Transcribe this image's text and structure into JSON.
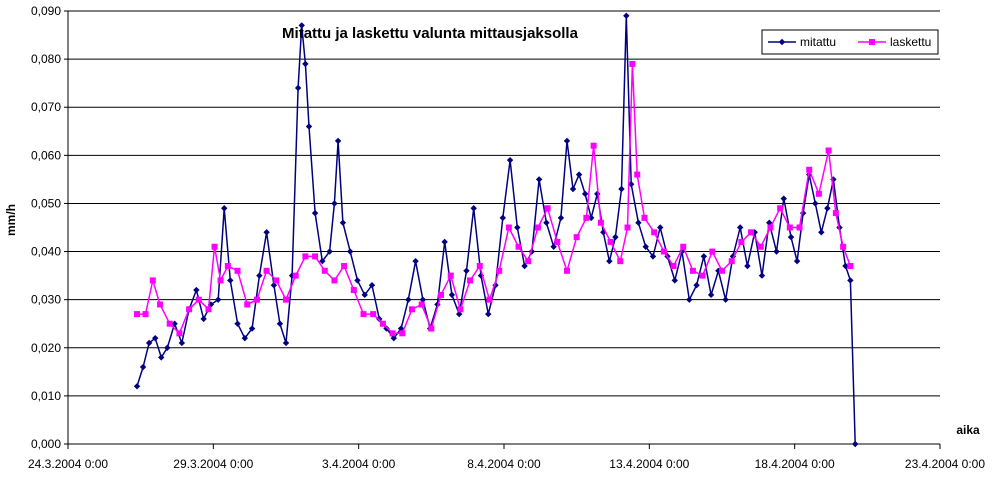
{
  "chart_data": {
    "type": "line",
    "title": "Mitattu ja laskettu valunta mittausjaksolla",
    "xlabel": "aika",
    "ylabel": "mm/h",
    "x_unit": "date",
    "xlim": [
      "24.3.2004 0:00",
      "23.4.2004 0:00"
    ],
    "ylim": [
      0,
      0.09
    ],
    "x_tick_labels": [
      "24.3.2004 0:00",
      "29.3.2004 0:00",
      "3.4.2004 0:00",
      "8.4.2004 0:00",
      "13.4.2004 0:00",
      "18.4.2004 0:00",
      "23.4.2004 0:00"
    ],
    "y_tick_labels": [
      "0,000",
      "0,010",
      "0,020",
      "0,030",
      "0,040",
      "0,050",
      "0,060",
      "0,070",
      "0,080",
      "0,090"
    ],
    "grid": "horizontal",
    "legend_position": "top-right",
    "colors": {
      "mitattu": "#000080",
      "laskettu": "#ff00ff"
    },
    "series": [
      {
        "name": "mitattu",
        "marker": "diamond",
        "points": [
          [
            "26.3.2004 9:00",
            0.012
          ],
          [
            "26.3.2004 14:00",
            0.016
          ],
          [
            "26.3.2004 19:00",
            0.021
          ],
          [
            "27.3.2004 0:00",
            0.022
          ],
          [
            "27.3.2004 5:00",
            0.018
          ],
          [
            "27.3.2004 10:00",
            0.02
          ],
          [
            "27.3.2004 16:00",
            0.025
          ],
          [
            "27.3.2004 22:00",
            0.021
          ],
          [
            "28.3.2004 4:00",
            0.028
          ],
          [
            "28.3.2004 10:00",
            0.032
          ],
          [
            "28.3.2004 16:00",
            0.026
          ],
          [
            "28.3.2004 22:00",
            0.029
          ],
          [
            "29.3.2004 4:00",
            0.03
          ],
          [
            "29.3.2004 9:00",
            0.049
          ],
          [
            "29.3.2004 14:00",
            0.034
          ],
          [
            "29.3.2004 20:00",
            0.025
          ],
          [
            "30.3.2004 2:00",
            0.022
          ],
          [
            "30.3.2004 8:00",
            0.024
          ],
          [
            "30.3.2004 14:00",
            0.035
          ],
          [
            "30.3.2004 20:00",
            0.044
          ],
          [
            "31.3.2004 2:00",
            0.033
          ],
          [
            "31.3.2004 7:00",
            0.025
          ],
          [
            "31.3.2004 12:00",
            0.021
          ],
          [
            "31.3.2004 17:00",
            0.035
          ],
          [
            "31.3.2004 22:00",
            0.074
          ],
          [
            "1.4.2004 1:00",
            0.087
          ],
          [
            "1.4.2004 4:00",
            0.079
          ],
          [
            "1.4.2004 7:00",
            0.066
          ],
          [
            "1.4.2004 12:00",
            0.048
          ],
          [
            "1.4.2004 18:00",
            0.038
          ],
          [
            "2.4.2004 0:00",
            0.04
          ],
          [
            "2.4.2004 4:00",
            0.05
          ],
          [
            "2.4.2004 7:00",
            0.063
          ],
          [
            "2.4.2004 11:00",
            0.046
          ],
          [
            "2.4.2004 17:00",
            0.04
          ],
          [
            "2.4.2004 23:00",
            0.034
          ],
          [
            "3.4.2004 5:00",
            0.031
          ],
          [
            "3.4.2004 11:00",
            0.033
          ],
          [
            "3.4.2004 17:00",
            0.026
          ],
          [
            "3.4.2004 23:00",
            0.024
          ],
          [
            "4.4.2004 5:00",
            0.022
          ],
          [
            "4.4.2004 11:00",
            0.024
          ],
          [
            "4.4.2004 17:00",
            0.03
          ],
          [
            "4.4.2004 23:00",
            0.038
          ],
          [
            "5.4.2004 5:00",
            0.03
          ],
          [
            "5.4.2004 11:00",
            0.024
          ],
          [
            "5.4.2004 17:00",
            0.029
          ],
          [
            "5.4.2004 23:00",
            0.042
          ],
          [
            "6.4.2004 5:00",
            0.031
          ],
          [
            "6.4.2004 11:00",
            0.027
          ],
          [
            "6.4.2004 17:00",
            0.036
          ],
          [
            "6.4.2004 23:00",
            0.049
          ],
          [
            "7.4.2004 5:00",
            0.035
          ],
          [
            "7.4.2004 11:00",
            0.027
          ],
          [
            "7.4.2004 17:00",
            0.033
          ],
          [
            "7.4.2004 23:00",
            0.047
          ],
          [
            "8.4.2004 5:00",
            0.059
          ],
          [
            "8.4.2004 11:00",
            0.045
          ],
          [
            "8.4.2004 17:00",
            0.037
          ],
          [
            "8.4.2004 23:00",
            0.04
          ],
          [
            "9.4.2004 5:00",
            0.055
          ],
          [
            "9.4.2004 11:00",
            0.046
          ],
          [
            "9.4.2004 17:00",
            0.041
          ],
          [
            "9.4.2004 23:00",
            0.047
          ],
          [
            "10.4.2004 4:00",
            0.063
          ],
          [
            "10.4.2004 9:00",
            0.053
          ],
          [
            "10.4.2004 14:00",
            0.056
          ],
          [
            "10.4.2004 19:00",
            0.052
          ],
          [
            "11.4.2004 0:00",
            0.047
          ],
          [
            "11.4.2004 5:00",
            0.052
          ],
          [
            "11.4.2004 10:00",
            0.044
          ],
          [
            "11.4.2004 15:00",
            0.038
          ],
          [
            "11.4.2004 20:00",
            0.043
          ],
          [
            "12.4.2004 1:00",
            0.053
          ],
          [
            "12.4.2004 5:00",
            0.089
          ],
          [
            "12.4.2004 9:00",
            0.054
          ],
          [
            "12.4.2004 15:00",
            0.046
          ],
          [
            "12.4.2004 21:00",
            0.041
          ],
          [
            "13.4.2004 3:00",
            0.039
          ],
          [
            "13.4.2004 9:00",
            0.045
          ],
          [
            "13.4.2004 15:00",
            0.039
          ],
          [
            "13.4.2004 21:00",
            0.034
          ],
          [
            "14.4.2004 3:00",
            0.04
          ],
          [
            "14.4.2004 9:00",
            0.03
          ],
          [
            "14.4.2004 15:00",
            0.033
          ],
          [
            "14.4.2004 21:00",
            0.039
          ],
          [
            "15.4.2004 3:00",
            0.031
          ],
          [
            "15.4.2004 9:00",
            0.036
          ],
          [
            "15.4.2004 15:00",
            0.03
          ],
          [
            "15.4.2004 21:00",
            0.039
          ],
          [
            "16.4.2004 3:00",
            0.045
          ],
          [
            "16.4.2004 9:00",
            0.037
          ],
          [
            "16.4.2004 15:00",
            0.044
          ],
          [
            "16.4.2004 21:00",
            0.035
          ],
          [
            "17.4.2004 3:00",
            0.046
          ],
          [
            "17.4.2004 9:00",
            0.04
          ],
          [
            "17.4.2004 15:00",
            0.051
          ],
          [
            "17.4.2004 21:00",
            0.043
          ],
          [
            "18.4.2004 2:00",
            0.038
          ],
          [
            "18.4.2004 7:00",
            0.048
          ],
          [
            "18.4.2004 12:00",
            0.056
          ],
          [
            "18.4.2004 17:00",
            0.05
          ],
          [
            "18.4.2004 22:00",
            0.044
          ],
          [
            "19.4.2004 3:00",
            0.049
          ],
          [
            "19.4.2004 8:00",
            0.055
          ],
          [
            "19.4.2004 13:00",
            0.045
          ],
          [
            "19.4.2004 18:00",
            0.037
          ],
          [
            "19.4.2004 22:00",
            0.034
          ],
          [
            "20.4.2004 2:00",
            0.0
          ]
        ]
      },
      {
        "name": "laskettu",
        "marker": "square",
        "points": [
          [
            "26.3.2004 9:00",
            0.027
          ],
          [
            "26.3.2004 16:00",
            0.027
          ],
          [
            "26.3.2004 22:00",
            0.034
          ],
          [
            "27.3.2004 4:00",
            0.029
          ],
          [
            "27.3.2004 12:00",
            0.025
          ],
          [
            "27.3.2004 20:00",
            0.023
          ],
          [
            "28.3.2004 4:00",
            0.028
          ],
          [
            "28.3.2004 12:00",
            0.03
          ],
          [
            "28.3.2004 20:00",
            0.028
          ],
          [
            "29.3.2004 1:00",
            0.041
          ],
          [
            "29.3.2004 6:00",
            0.034
          ],
          [
            "29.3.2004 12:00",
            0.037
          ],
          [
            "29.3.2004 20:00",
            0.036
          ],
          [
            "30.3.2004 4:00",
            0.029
          ],
          [
            "30.3.2004 12:00",
            0.03
          ],
          [
            "30.3.2004 20:00",
            0.036
          ],
          [
            "31.3.2004 4:00",
            0.034
          ],
          [
            "31.3.2004 12:00",
            0.03
          ],
          [
            "31.3.2004 20:00",
            0.035
          ],
          [
            "1.4.2004 4:00",
            0.039
          ],
          [
            "1.4.2004 12:00",
            0.039
          ],
          [
            "1.4.2004 20:00",
            0.036
          ],
          [
            "2.4.2004 4:00",
            0.034
          ],
          [
            "2.4.2004 12:00",
            0.037
          ],
          [
            "2.4.2004 20:00",
            0.032
          ],
          [
            "3.4.2004 4:00",
            0.027
          ],
          [
            "3.4.2004 12:00",
            0.027
          ],
          [
            "3.4.2004 20:00",
            0.025
          ],
          [
            "4.4.2004 4:00",
            0.023
          ],
          [
            "4.4.2004 12:00",
            0.023
          ],
          [
            "4.4.2004 20:00",
            0.028
          ],
          [
            "5.4.2004 4:00",
            0.029
          ],
          [
            "5.4.2004 12:00",
            0.024
          ],
          [
            "5.4.2004 20:00",
            0.031
          ],
          [
            "6.4.2004 4:00",
            0.035
          ],
          [
            "6.4.2004 12:00",
            0.028
          ],
          [
            "6.4.2004 20:00",
            0.034
          ],
          [
            "7.4.2004 4:00",
            0.037
          ],
          [
            "7.4.2004 12:00",
            0.03
          ],
          [
            "7.4.2004 20:00",
            0.036
          ],
          [
            "8.4.2004 4:00",
            0.045
          ],
          [
            "8.4.2004 12:00",
            0.041
          ],
          [
            "8.4.2004 20:00",
            0.038
          ],
          [
            "9.4.2004 4:00",
            0.045
          ],
          [
            "9.4.2004 12:00",
            0.049
          ],
          [
            "9.4.2004 20:00",
            0.042
          ],
          [
            "10.4.2004 4:00",
            0.036
          ],
          [
            "10.4.2004 12:00",
            0.043
          ],
          [
            "10.4.2004 20:00",
            0.047
          ],
          [
            "11.4.2004 2:00",
            0.062
          ],
          [
            "11.4.2004 8:00",
            0.046
          ],
          [
            "11.4.2004 16:00",
            0.042
          ],
          [
            "12.4.2004 0:00",
            0.038
          ],
          [
            "12.4.2004 6:00",
            0.045
          ],
          [
            "12.4.2004 10:00",
            0.079
          ],
          [
            "12.4.2004 14:00",
            0.056
          ],
          [
            "12.4.2004 20:00",
            0.047
          ],
          [
            "13.4.2004 4:00",
            0.044
          ],
          [
            "13.4.2004 12:00",
            0.04
          ],
          [
            "13.4.2004 20:00",
            0.037
          ],
          [
            "14.4.2004 4:00",
            0.041
          ],
          [
            "14.4.2004 12:00",
            0.036
          ],
          [
            "14.4.2004 20:00",
            0.035
          ],
          [
            "15.4.2004 4:00",
            0.04
          ],
          [
            "15.4.2004 12:00",
            0.036
          ],
          [
            "15.4.2004 20:00",
            0.038
          ],
          [
            "16.4.2004 4:00",
            0.042
          ],
          [
            "16.4.2004 12:00",
            0.044
          ],
          [
            "16.4.2004 20:00",
            0.041
          ],
          [
            "17.4.2004 4:00",
            0.045
          ],
          [
            "17.4.2004 12:00",
            0.049
          ],
          [
            "17.4.2004 20:00",
            0.045
          ],
          [
            "18.4.2004 4:00",
            0.045
          ],
          [
            "18.4.2004 12:00",
            0.057
          ],
          [
            "18.4.2004 20:00",
            0.052
          ],
          [
            "19.4.2004 4:00",
            0.061
          ],
          [
            "19.4.2004 10:00",
            0.048
          ],
          [
            "19.4.2004 16:00",
            0.041
          ],
          [
            "19.4.2004 22:00",
            0.037
          ]
        ]
      }
    ]
  }
}
